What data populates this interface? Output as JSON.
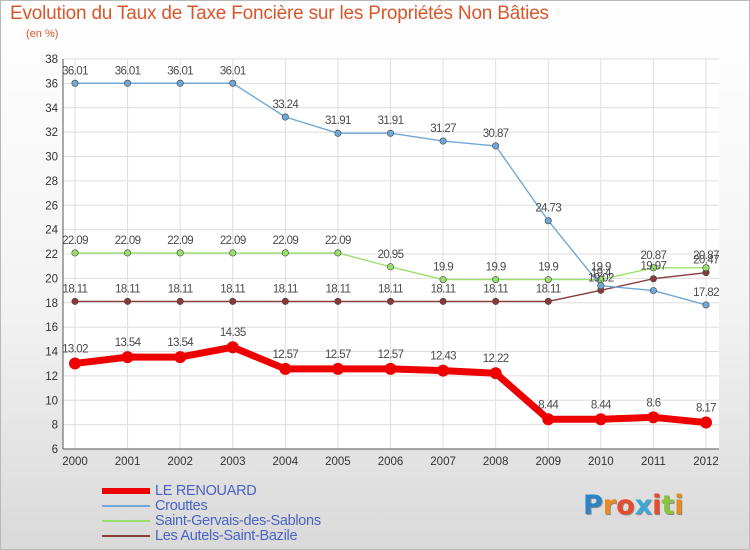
{
  "title": "Evolution du Taux de Taxe Foncière sur les Propriétés Non Bâties",
  "subtitle": "(en %)",
  "logo": {
    "letters": [
      "P",
      "r",
      "o",
      "x",
      "i",
      "t",
      "i"
    ],
    "colors": [
      "#2c84c7",
      "#e98b1f",
      "#e64b2c",
      "#3aa9d8",
      "#e64b2c",
      "#8bc53f",
      "#e98b1f"
    ]
  },
  "chart_data": {
    "type": "line",
    "x": [
      "2000",
      "2001",
      "2002",
      "2003",
      "2004",
      "2005",
      "2006",
      "2007",
      "2008",
      "2009",
      "2010",
      "2011",
      "2012"
    ],
    "ylim": [
      6,
      38
    ],
    "yticks": [
      "6",
      "8",
      "10",
      "12",
      "14",
      "16",
      "18",
      "20",
      "22",
      "24",
      "26",
      "28",
      "30",
      "32",
      "34",
      "36",
      "38"
    ],
    "grid": true,
    "series": [
      {
        "name": "LE RENOUARD",
        "color": "#ee0000",
        "values": [
          13.02,
          13.54,
          13.54,
          14.35,
          12.57,
          12.57,
          12.57,
          12.43,
          12.22,
          8.44,
          8.44,
          8.6,
          8.17
        ],
        "labels": [
          "13.02",
          "13.54",
          "13.54",
          "14.35",
          "12.57",
          "12.57",
          "12.57",
          "12.43",
          "12.22",
          "8.44",
          "8.44",
          "8.6",
          "8.17"
        ]
      },
      {
        "name": "Crouttes",
        "color": "#6fa8d6",
        "values": [
          36.01,
          36.01,
          36.01,
          36.01,
          33.24,
          31.91,
          31.91,
          31.27,
          30.87,
          24.73,
          19.4,
          19.0,
          17.82
        ],
        "labels": [
          "36.01",
          "36.01",
          "36.01",
          "36.01",
          "33.24",
          "31.91",
          "31.91",
          "31.27",
          "30.87",
          "24.73",
          "19.4",
          "",
          "17.82"
        ]
      },
      {
        "name": "Saint-Gervais-des-Sablons",
        "color": "#99e06a",
        "values": [
          22.09,
          22.09,
          22.09,
          22.09,
          22.09,
          22.09,
          20.95,
          19.9,
          19.9,
          19.9,
          19.9,
          20.87,
          20.87
        ],
        "labels": [
          "22.09",
          "22.09",
          "22.09",
          "22.09",
          "22.09",
          "22.09",
          "20.95",
          "19.9",
          "19.9",
          "19.9",
          "19.9",
          "20.87",
          "20.87"
        ]
      },
      {
        "name": "Les Autels-Saint-Bazile",
        "color": "#8a3a3a",
        "values": [
          18.11,
          18.11,
          18.11,
          18.11,
          18.11,
          18.11,
          18.11,
          18.11,
          18.11,
          18.11,
          19.02,
          19.97,
          20.47
        ],
        "labels": [
          "18.11",
          "18.11",
          "18.11",
          "18.11",
          "18.11",
          "18.11",
          "18.11",
          "18.11",
          "18.11",
          "18.11",
          "19.02",
          "19.97",
          "20.47"
        ]
      }
    ]
  }
}
